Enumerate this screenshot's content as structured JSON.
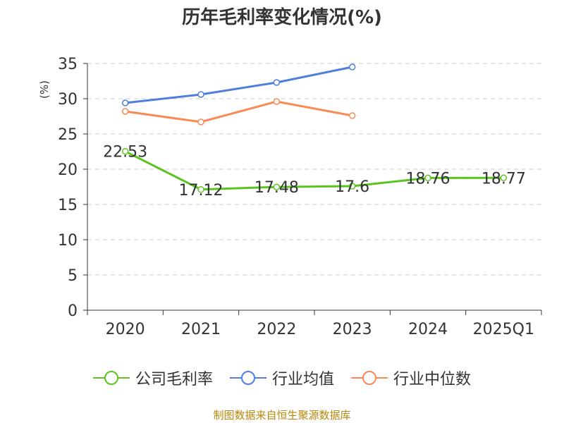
{
  "chart_data": {
    "type": "line",
    "title": "历年毛利率变化情况(%)",
    "ylabel": "(%)",
    "xlabel": "",
    "categories": [
      "2020",
      "2021",
      "2022",
      "2023",
      "2024",
      "2025Q1"
    ],
    "ylim": [
      0,
      35
    ],
    "yticks": [
      0,
      5,
      10,
      15,
      20,
      25,
      30,
      35
    ],
    "grid": true,
    "legend_position": "bottom",
    "series": [
      {
        "name": "公司毛利率",
        "color": "#5cc41f",
        "values": [
          22.53,
          17.12,
          17.48,
          17.6,
          18.76,
          18.77
        ],
        "labels": [
          "22.53",
          "17.12",
          "17.48",
          "17.6",
          "18.76",
          "18.77"
        ]
      },
      {
        "name": "行业均值",
        "color": "#4f7fdb",
        "values": [
          29.4,
          30.6,
          32.3,
          34.5,
          null,
          null
        ]
      },
      {
        "name": "行业中位数",
        "color": "#f78b55",
        "values": [
          28.2,
          26.7,
          29.6,
          27.6,
          null,
          null
        ]
      }
    ]
  },
  "source": "制图数据来自恒生聚源数据库"
}
